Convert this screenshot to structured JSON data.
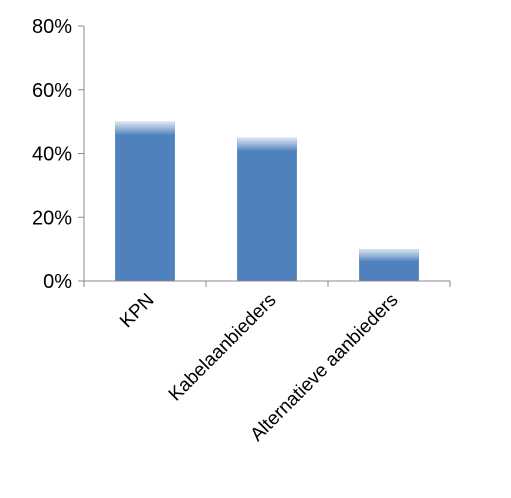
{
  "chart_data": {
    "type": "bar",
    "title": "",
    "xlabel": "",
    "ylabel": "",
    "categories": [
      "KPN",
      "Kabelaanbieders",
      "Alternatieve aanbieders"
    ],
    "values": [
      50,
      45,
      10
    ],
    "ylim": [
      0,
      80
    ],
    "yticks": [
      "0%",
      "20%",
      "40%",
      "60%",
      "80%"
    ],
    "ytick_values": [
      0,
      20,
      40,
      60,
      80
    ],
    "grid": false,
    "legend": "none",
    "bar_color": "#4f81bd",
    "bar_highlight_color": "#dde6f3"
  }
}
